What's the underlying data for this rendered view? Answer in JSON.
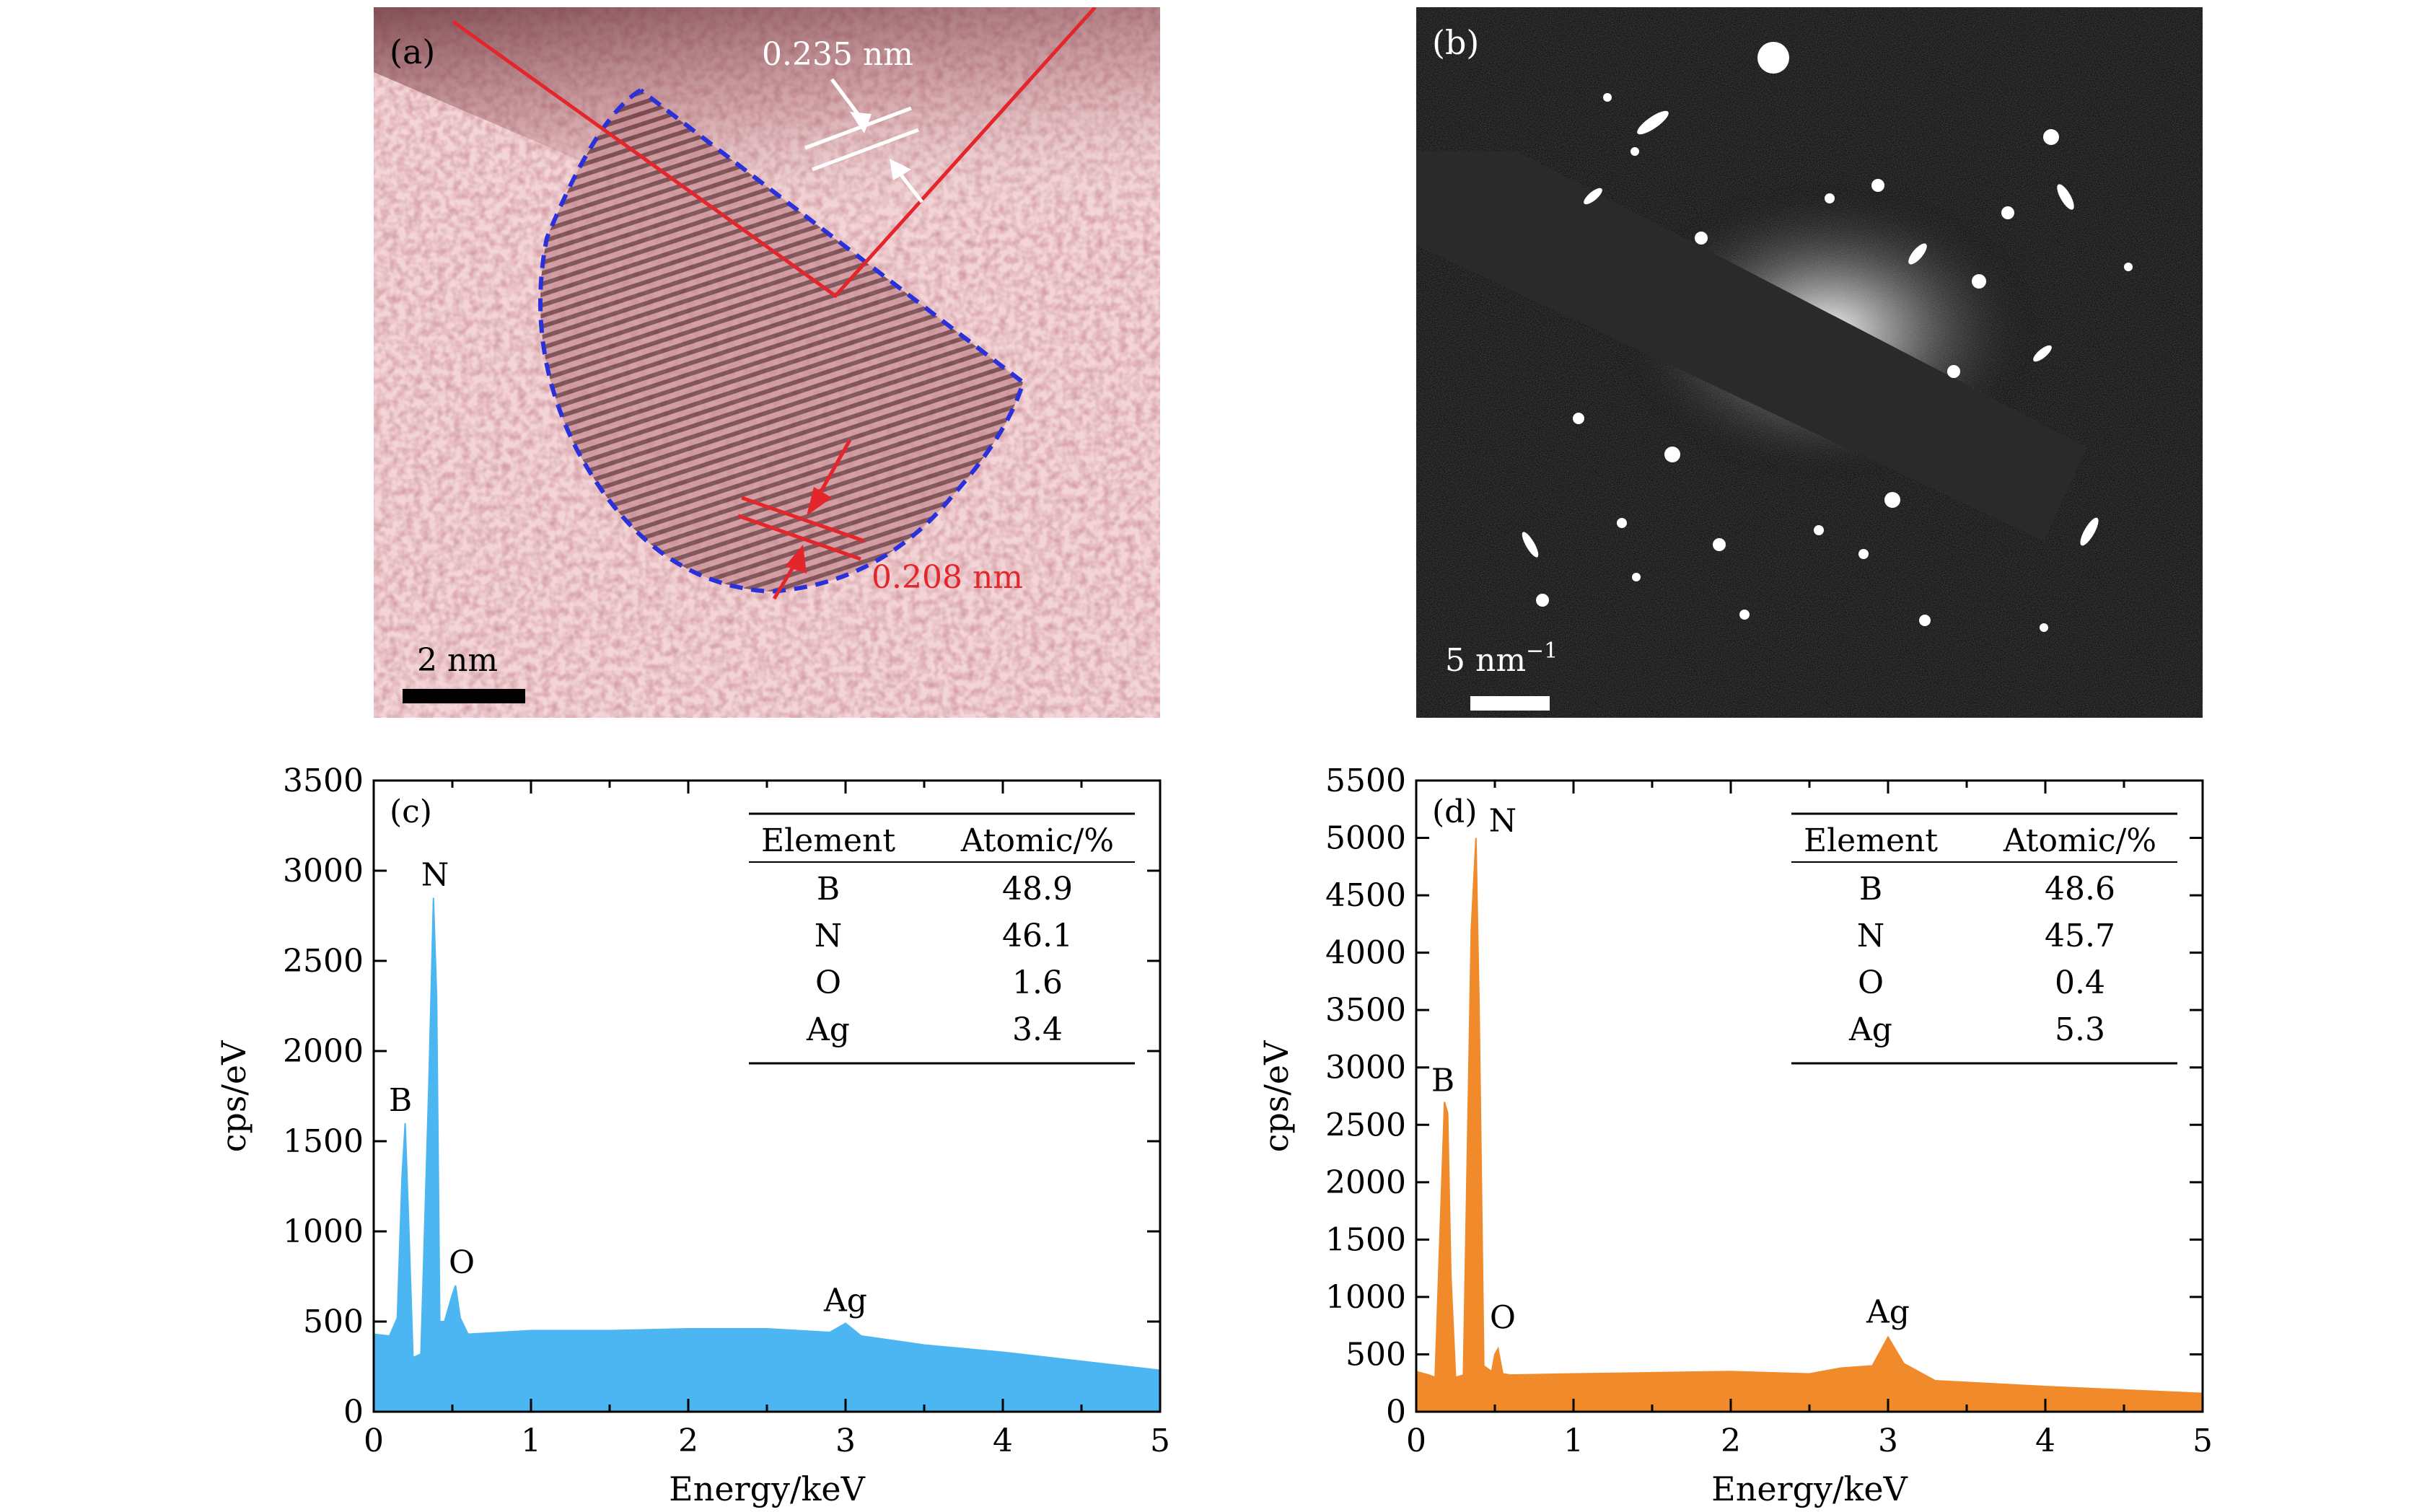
{
  "panel_a": {
    "label": "(a)",
    "spacing_top": "0.235 nm",
    "spacing_bottom": "0.208 nm",
    "scale_bar": "2 nm"
  },
  "panel_b": {
    "label": "(b)",
    "scale_bar_base": "5 nm",
    "scale_bar_exp": "−1"
  },
  "colors": {
    "hrtem_tint": "#e8a7ad",
    "red_line": "#e3262c",
    "blue_dash": "#2b31d8",
    "spectrum_c": "#4cb6f2",
    "spectrum_d": "#f08a2a"
  },
  "chart_data": [
    {
      "type": "area",
      "panel_label": "(c)",
      "xlabel": "Energy/keV",
      "ylabel": "cps/eV",
      "xlim": [
        0,
        5
      ],
      "ylim": [
        0,
        3500
      ],
      "xticks": [
        "0",
        "1",
        "2",
        "3",
        "4",
        "5"
      ],
      "yticks": [
        "0",
        "500",
        "1000",
        "1500",
        "2000",
        "2500",
        "3000",
        "3500"
      ],
      "x": [
        0,
        0.1,
        0.15,
        0.18,
        0.2,
        0.22,
        0.25,
        0.3,
        0.35,
        0.38,
        0.4,
        0.42,
        0.45,
        0.5,
        0.52,
        0.55,
        0.6,
        0.8,
        1.0,
        1.5,
        2.0,
        2.5,
        2.9,
        3.0,
        3.1,
        3.5,
        4.0,
        4.5,
        5.0
      ],
      "values": [
        430,
        420,
        520,
        1300,
        1600,
        1100,
        300,
        320,
        1800,
        2850,
        2300,
        500,
        500,
        650,
        700,
        520,
        430,
        440,
        450,
        450,
        460,
        460,
        440,
        490,
        420,
        370,
        330,
        280,
        230
      ],
      "peak_labels": [
        {
          "text": "B",
          "x": 0.17,
          "y": 1620
        },
        {
          "text": "N",
          "x": 0.39,
          "y": 2870
        },
        {
          "text": "O",
          "x": 0.56,
          "y": 720
        },
        {
          "text": "Ag",
          "x": 3.0,
          "y": 510
        }
      ],
      "table": {
        "headers": [
          "Element",
          "Atomic/%"
        ],
        "rows": [
          [
            "B",
            "48.9"
          ],
          [
            "N",
            "46.1"
          ],
          [
            "O",
            "1.6"
          ],
          [
            "Ag",
            "3.4"
          ]
        ]
      }
    },
    {
      "type": "area",
      "panel_label": "(d)",
      "xlabel": "Energy/keV",
      "ylabel": "cps/eV",
      "xlim": [
        0,
        5
      ],
      "ylim": [
        0,
        5500
      ],
      "xticks": [
        "0",
        "1",
        "2",
        "3",
        "4",
        "5"
      ],
      "yticks": [
        "0",
        "500",
        "1000",
        "1500",
        "2000",
        "2500",
        "3000",
        "3500",
        "4000",
        "4500",
        "5000",
        "5500"
      ],
      "x": [
        0,
        0.08,
        0.12,
        0.15,
        0.18,
        0.2,
        0.22,
        0.25,
        0.3,
        0.35,
        0.38,
        0.4,
        0.43,
        0.48,
        0.5,
        0.52,
        0.55,
        0.6,
        1.0,
        1.5,
        2.0,
        2.5,
        2.7,
        2.9,
        3.0,
        3.1,
        3.3,
        4.0,
        4.5,
        5.0
      ],
      "values": [
        350,
        320,
        300,
        1500,
        2700,
        2600,
        1200,
        300,
        320,
        4200,
        5000,
        3500,
        400,
        350,
        500,
        550,
        330,
        320,
        330,
        340,
        350,
        330,
        380,
        400,
        650,
        420,
        270,
        220,
        190,
        160
      ],
      "peak_labels": [
        {
          "text": "B",
          "x": 0.17,
          "y": 2720
        },
        {
          "text": "N",
          "x": 0.55,
          "y": 4980
        },
        {
          "text": "O",
          "x": 0.55,
          "y": 650
        },
        {
          "text": "Ag",
          "x": 3.0,
          "y": 700
        }
      ],
      "table": {
        "headers": [
          "Element",
          "Atomic/%"
        ],
        "rows": [
          [
            "B",
            "48.6"
          ],
          [
            "N",
            "45.7"
          ],
          [
            "O",
            "0.4"
          ],
          [
            "Ag",
            "5.3"
          ]
        ]
      }
    }
  ]
}
